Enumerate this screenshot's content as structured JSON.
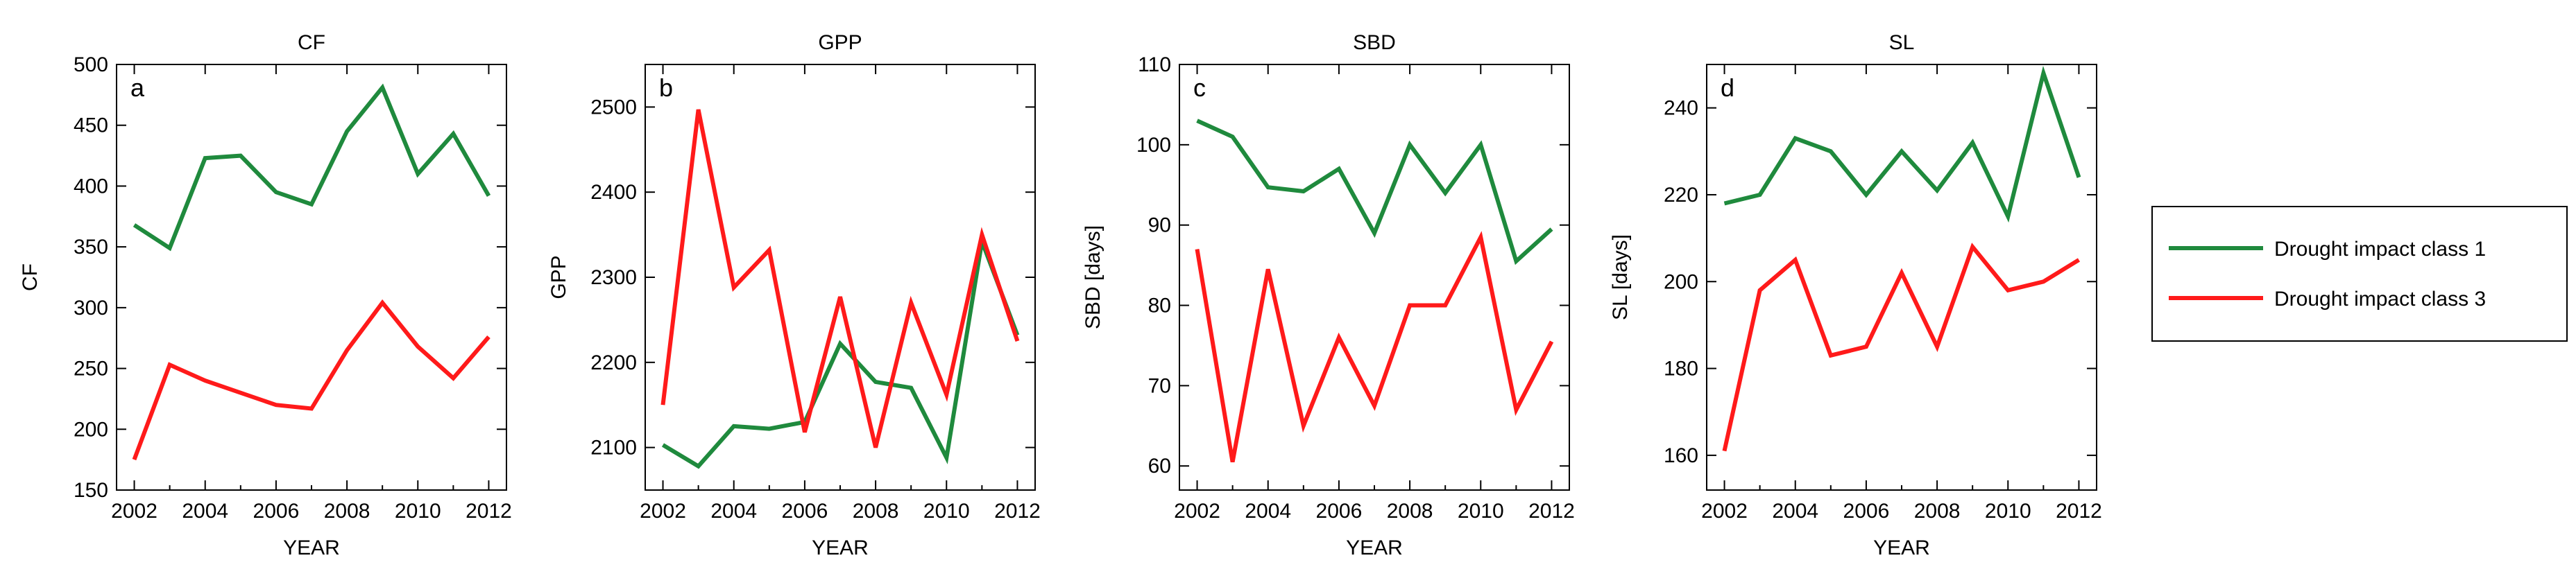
{
  "figure": {
    "series_colors": {
      "class1": "#1f8a3d",
      "class3": "#ff1a1a"
    },
    "legend": {
      "position": "right-center",
      "entries": [
        "Drought impact class 1",
        "Drought impact class 3"
      ]
    }
  },
  "chart_data": [
    {
      "type": "line",
      "panel_letter": "a",
      "title": "CF",
      "xlabel": "YEAR",
      "ylabel": "CF",
      "x": [
        2002,
        2003,
        2004,
        2005,
        2006,
        2007,
        2008,
        2009,
        2010,
        2011,
        2012
      ],
      "xlim": [
        2001.5,
        2012.5
      ],
      "ylim": [
        150,
        500
      ],
      "xticks": [
        2002,
        2004,
        2006,
        2008,
        2010,
        2012
      ],
      "yticks": [
        150,
        200,
        250,
        300,
        350,
        400,
        450,
        500
      ],
      "xtick_labels": [
        "2002",
        "2004",
        "2006",
        "2008",
        "2010",
        "2012"
      ],
      "ytick_labels": [
        "150",
        "200",
        "250",
        "300",
        "350",
        "400",
        "450",
        "500"
      ],
      "series": [
        {
          "name": "Drought impact class 1",
          "key": "class1",
          "values": [
            368,
            349,
            423,
            425,
            395,
            385,
            445,
            481,
            410,
            443,
            392
          ]
        },
        {
          "name": "Drought impact class 3",
          "key": "class3",
          "values": [
            175,
            253,
            240,
            230,
            220,
            217,
            265,
            304,
            268,
            242,
            276
          ]
        }
      ]
    },
    {
      "type": "line",
      "panel_letter": "b",
      "title": "GPP",
      "xlabel": "YEAR",
      "ylabel": "GPP",
      "x": [
        2002,
        2003,
        2004,
        2005,
        2006,
        2007,
        2008,
        2009,
        2010,
        2011,
        2012
      ],
      "xlim": [
        2001.5,
        2012.5
      ],
      "ylim": [
        2050,
        2550
      ],
      "xticks": [
        2002,
        2004,
        2006,
        2008,
        2010,
        2012
      ],
      "yticks": [
        2100,
        2200,
        2300,
        2400,
        2500
      ],
      "xtick_labels": [
        "2002",
        "2004",
        "2006",
        "2008",
        "2010",
        "2012"
      ],
      "ytick_labels": [
        "2100",
        "2200",
        "2300",
        "2400",
        "2500"
      ],
      "series": [
        {
          "name": "Drought impact class 1",
          "key": "class1",
          "values": [
            2103,
            2078,
            2125,
            2122,
            2130,
            2222,
            2177,
            2170,
            2088,
            2342,
            2232
          ]
        },
        {
          "name": "Drought impact class 3",
          "key": "class3",
          "values": [
            2150,
            2497,
            2288,
            2332,
            2118,
            2277,
            2100,
            2270,
            2162,
            2350,
            2225
          ]
        }
      ]
    },
    {
      "type": "line",
      "panel_letter": "c",
      "title": "SBD",
      "xlabel": "YEAR",
      "ylabel": "SBD [days]",
      "x": [
        2002,
        2003,
        2004,
        2005,
        2006,
        2007,
        2008,
        2009,
        2010,
        2011,
        2012
      ],
      "xlim": [
        2001.5,
        2012.5
      ],
      "ylim": [
        57,
        110
      ],
      "xticks": [
        2002,
        2004,
        2006,
        2008,
        2010,
        2012
      ],
      "yticks": [
        60,
        70,
        80,
        90,
        100,
        110
      ],
      "xtick_labels": [
        "2002",
        "2004",
        "2006",
        "2008",
        "2010",
        "2012"
      ],
      "ytick_labels": [
        "60",
        "70",
        "80",
        "90",
        "100",
        "110"
      ],
      "series": [
        {
          "name": "Drought impact class 1",
          "key": "class1",
          "values": [
            103,
            101,
            94.7,
            94.2,
            97,
            89,
            100,
            94,
            100,
            85.5,
            89.5
          ]
        },
        {
          "name": "Drought impact class 3",
          "key": "class3",
          "values": [
            87,
            60.5,
            84.5,
            65,
            76,
            67.5,
            80,
            80,
            88.5,
            67,
            75.5
          ]
        }
      ]
    },
    {
      "type": "line",
      "panel_letter": "d",
      "title": "SL",
      "xlabel": "YEAR",
      "ylabel": "SL [days]",
      "x": [
        2002,
        2003,
        2004,
        2005,
        2006,
        2007,
        2008,
        2009,
        2010,
        2011,
        2012
      ],
      "xlim": [
        2001.5,
        2012.5
      ],
      "ylim": [
        152,
        250
      ],
      "xticks": [
        2002,
        2004,
        2006,
        2008,
        2010,
        2012
      ],
      "yticks": [
        160,
        180,
        200,
        220,
        240
      ],
      "xtick_labels": [
        "2002",
        "2004",
        "2006",
        "2008",
        "2010",
        "2012"
      ],
      "ytick_labels": [
        "160",
        "180",
        "200",
        "220",
        "240"
      ],
      "series": [
        {
          "name": "Drought impact class 1",
          "key": "class1",
          "values": [
            218,
            220,
            233,
            230,
            220,
            230,
            221,
            232,
            215,
            248,
            224
          ]
        },
        {
          "name": "Drought impact class 3",
          "key": "class3",
          "values": [
            161,
            198,
            205,
            183,
            185,
            202,
            185,
            208,
            198,
            200,
            205
          ]
        }
      ]
    }
  ]
}
